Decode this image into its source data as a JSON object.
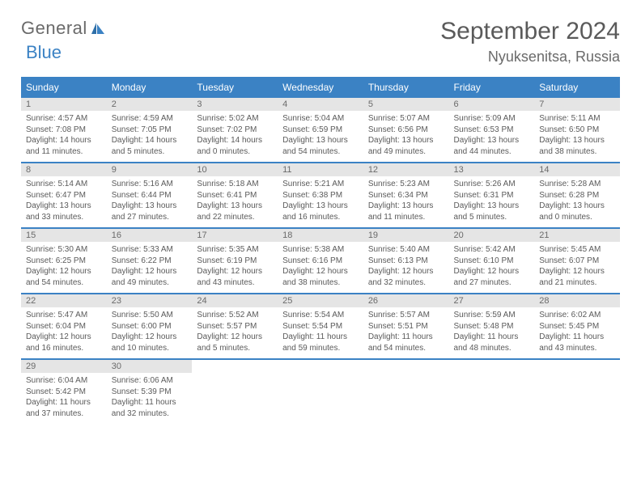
{
  "logo": {
    "text1": "General",
    "text2": "Blue"
  },
  "title": "September 2024",
  "location": "Nyuksenitsa, Russia",
  "header_bg": "#3b82c4",
  "weekdays": [
    "Sunday",
    "Monday",
    "Tuesday",
    "Wednesday",
    "Thursday",
    "Friday",
    "Saturday"
  ],
  "weeks": [
    [
      {
        "n": "1",
        "sr": "Sunrise: 4:57 AM",
        "ss": "Sunset: 7:08 PM",
        "d1": "Daylight: 14 hours",
        "d2": "and 11 minutes."
      },
      {
        "n": "2",
        "sr": "Sunrise: 4:59 AM",
        "ss": "Sunset: 7:05 PM",
        "d1": "Daylight: 14 hours",
        "d2": "and 5 minutes."
      },
      {
        "n": "3",
        "sr": "Sunrise: 5:02 AM",
        "ss": "Sunset: 7:02 PM",
        "d1": "Daylight: 14 hours",
        "d2": "and 0 minutes."
      },
      {
        "n": "4",
        "sr": "Sunrise: 5:04 AM",
        "ss": "Sunset: 6:59 PM",
        "d1": "Daylight: 13 hours",
        "d2": "and 54 minutes."
      },
      {
        "n": "5",
        "sr": "Sunrise: 5:07 AM",
        "ss": "Sunset: 6:56 PM",
        "d1": "Daylight: 13 hours",
        "d2": "and 49 minutes."
      },
      {
        "n": "6",
        "sr": "Sunrise: 5:09 AM",
        "ss": "Sunset: 6:53 PM",
        "d1": "Daylight: 13 hours",
        "d2": "and 44 minutes."
      },
      {
        "n": "7",
        "sr": "Sunrise: 5:11 AM",
        "ss": "Sunset: 6:50 PM",
        "d1": "Daylight: 13 hours",
        "d2": "and 38 minutes."
      }
    ],
    [
      {
        "n": "8",
        "sr": "Sunrise: 5:14 AM",
        "ss": "Sunset: 6:47 PM",
        "d1": "Daylight: 13 hours",
        "d2": "and 33 minutes."
      },
      {
        "n": "9",
        "sr": "Sunrise: 5:16 AM",
        "ss": "Sunset: 6:44 PM",
        "d1": "Daylight: 13 hours",
        "d2": "and 27 minutes."
      },
      {
        "n": "10",
        "sr": "Sunrise: 5:18 AM",
        "ss": "Sunset: 6:41 PM",
        "d1": "Daylight: 13 hours",
        "d2": "and 22 minutes."
      },
      {
        "n": "11",
        "sr": "Sunrise: 5:21 AM",
        "ss": "Sunset: 6:38 PM",
        "d1": "Daylight: 13 hours",
        "d2": "and 16 minutes."
      },
      {
        "n": "12",
        "sr": "Sunrise: 5:23 AM",
        "ss": "Sunset: 6:34 PM",
        "d1": "Daylight: 13 hours",
        "d2": "and 11 minutes."
      },
      {
        "n": "13",
        "sr": "Sunrise: 5:26 AM",
        "ss": "Sunset: 6:31 PM",
        "d1": "Daylight: 13 hours",
        "d2": "and 5 minutes."
      },
      {
        "n": "14",
        "sr": "Sunrise: 5:28 AM",
        "ss": "Sunset: 6:28 PM",
        "d1": "Daylight: 13 hours",
        "d2": "and 0 minutes."
      }
    ],
    [
      {
        "n": "15",
        "sr": "Sunrise: 5:30 AM",
        "ss": "Sunset: 6:25 PM",
        "d1": "Daylight: 12 hours",
        "d2": "and 54 minutes."
      },
      {
        "n": "16",
        "sr": "Sunrise: 5:33 AM",
        "ss": "Sunset: 6:22 PM",
        "d1": "Daylight: 12 hours",
        "d2": "and 49 minutes."
      },
      {
        "n": "17",
        "sr": "Sunrise: 5:35 AM",
        "ss": "Sunset: 6:19 PM",
        "d1": "Daylight: 12 hours",
        "d2": "and 43 minutes."
      },
      {
        "n": "18",
        "sr": "Sunrise: 5:38 AM",
        "ss": "Sunset: 6:16 PM",
        "d1": "Daylight: 12 hours",
        "d2": "and 38 minutes."
      },
      {
        "n": "19",
        "sr": "Sunrise: 5:40 AM",
        "ss": "Sunset: 6:13 PM",
        "d1": "Daylight: 12 hours",
        "d2": "and 32 minutes."
      },
      {
        "n": "20",
        "sr": "Sunrise: 5:42 AM",
        "ss": "Sunset: 6:10 PM",
        "d1": "Daylight: 12 hours",
        "d2": "and 27 minutes."
      },
      {
        "n": "21",
        "sr": "Sunrise: 5:45 AM",
        "ss": "Sunset: 6:07 PM",
        "d1": "Daylight: 12 hours",
        "d2": "and 21 minutes."
      }
    ],
    [
      {
        "n": "22",
        "sr": "Sunrise: 5:47 AM",
        "ss": "Sunset: 6:04 PM",
        "d1": "Daylight: 12 hours",
        "d2": "and 16 minutes."
      },
      {
        "n": "23",
        "sr": "Sunrise: 5:50 AM",
        "ss": "Sunset: 6:00 PM",
        "d1": "Daylight: 12 hours",
        "d2": "and 10 minutes."
      },
      {
        "n": "24",
        "sr": "Sunrise: 5:52 AM",
        "ss": "Sunset: 5:57 PM",
        "d1": "Daylight: 12 hours",
        "d2": "and 5 minutes."
      },
      {
        "n": "25",
        "sr": "Sunrise: 5:54 AM",
        "ss": "Sunset: 5:54 PM",
        "d1": "Daylight: 11 hours",
        "d2": "and 59 minutes."
      },
      {
        "n": "26",
        "sr": "Sunrise: 5:57 AM",
        "ss": "Sunset: 5:51 PM",
        "d1": "Daylight: 11 hours",
        "d2": "and 54 minutes."
      },
      {
        "n": "27",
        "sr": "Sunrise: 5:59 AM",
        "ss": "Sunset: 5:48 PM",
        "d1": "Daylight: 11 hours",
        "d2": "and 48 minutes."
      },
      {
        "n": "28",
        "sr": "Sunrise: 6:02 AM",
        "ss": "Sunset: 5:45 PM",
        "d1": "Daylight: 11 hours",
        "d2": "and 43 minutes."
      }
    ],
    [
      {
        "n": "29",
        "sr": "Sunrise: 6:04 AM",
        "ss": "Sunset: 5:42 PM",
        "d1": "Daylight: 11 hours",
        "d2": "and 37 minutes."
      },
      {
        "n": "30",
        "sr": "Sunrise: 6:06 AM",
        "ss": "Sunset: 5:39 PM",
        "d1": "Daylight: 11 hours",
        "d2": "and 32 minutes."
      },
      {
        "empty": true
      },
      {
        "empty": true
      },
      {
        "empty": true
      },
      {
        "empty": true
      },
      {
        "empty": true
      }
    ]
  ]
}
